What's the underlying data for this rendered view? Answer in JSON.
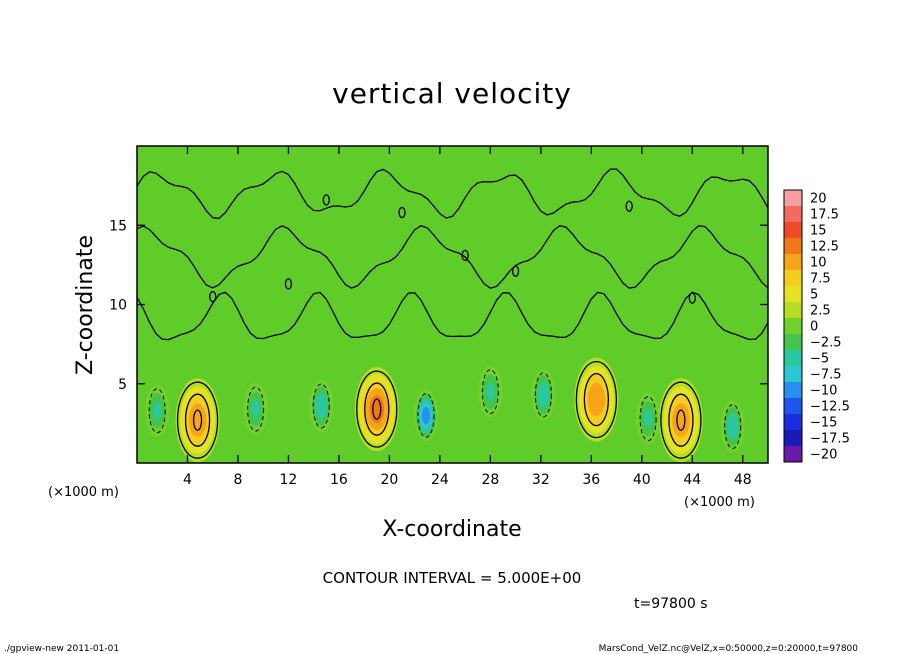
{
  "chart_data": {
    "type": "heatmap",
    "title": "vertical velocity",
    "xlabel": "X-coordinate",
    "ylabel": "Z-coordinate",
    "x_unit_left": "(×1000 m)",
    "x_unit_right": "(×1000 m)",
    "xlim": [
      0,
      50
    ],
    "ylim": [
      0,
      20
    ],
    "x_ticks": [
      "4",
      "8",
      "12",
      "16",
      "20",
      "24",
      "28",
      "32",
      "36",
      "40",
      "44",
      "48"
    ],
    "y_ticks": [
      "5",
      "10",
      "15"
    ],
    "contour_interval_text": "CONTOUR INTERVAL = 5.000E+00",
    "time_text": "t=97800 s",
    "colorbar": {
      "labels": [
        "20",
        "17.5",
        "15",
        "12.5",
        "10",
        "7.5",
        "5",
        "2.5",
        "0",
        "−2.5",
        "−5",
        "−7.5",
        "−10",
        "−12.5",
        "−15",
        "−17.5",
        "−20"
      ],
      "colors": [
        "#f6a0a6",
        "#f26b5e",
        "#ee4a2a",
        "#f07818",
        "#f6a51a",
        "#f5cd1f",
        "#e3e224",
        "#b5dd22",
        "#72d02a",
        "#43c54b",
        "#2bc8a0",
        "#2bc8d2",
        "#2790ef",
        "#1e55ec",
        "#1a2edb",
        "#1a1ab7",
        "#6a19a8"
      ]
    },
    "field_features": [
      {
        "x": 4.8,
        "z": 2.7,
        "peak": 10,
        "sign": "updraft"
      },
      {
        "x": 19.0,
        "z": 3.4,
        "peak": 12,
        "sign": "updraft"
      },
      {
        "x": 36.4,
        "z": 4.0,
        "peak": 8,
        "sign": "updraft"
      },
      {
        "x": 43.1,
        "z": 2.7,
        "peak": 10,
        "sign": "updraft"
      },
      {
        "x": 22.9,
        "z": 3.0,
        "peak": -11,
        "sign": "downdraft"
      },
      {
        "x": 14.6,
        "z": 3.6,
        "peak": -7,
        "sign": "downdraft"
      },
      {
        "x": 32.2,
        "z": 4.3,
        "peak": -7,
        "sign": "downdraft"
      },
      {
        "x": 28.0,
        "z": 4.5,
        "peak": -5,
        "sign": "downdraft"
      },
      {
        "x": 47.2,
        "z": 2.3,
        "peak": -7,
        "sign": "downdraft"
      },
      {
        "x": 1.6,
        "z": 3.3,
        "peak": -5,
        "sign": "downdraft"
      },
      {
        "x": 9.4,
        "z": 3.4,
        "peak": -5,
        "sign": "downdraft"
      },
      {
        "x": 40.5,
        "z": 2.8,
        "peak": -5,
        "sign": "downdraft"
      }
    ]
  },
  "footer": {
    "left": "./gpview-new  2011-01-01",
    "right": "MarsCond_VelZ.nc@VelZ,x=0:50000,z=0:20000,t=97800"
  }
}
